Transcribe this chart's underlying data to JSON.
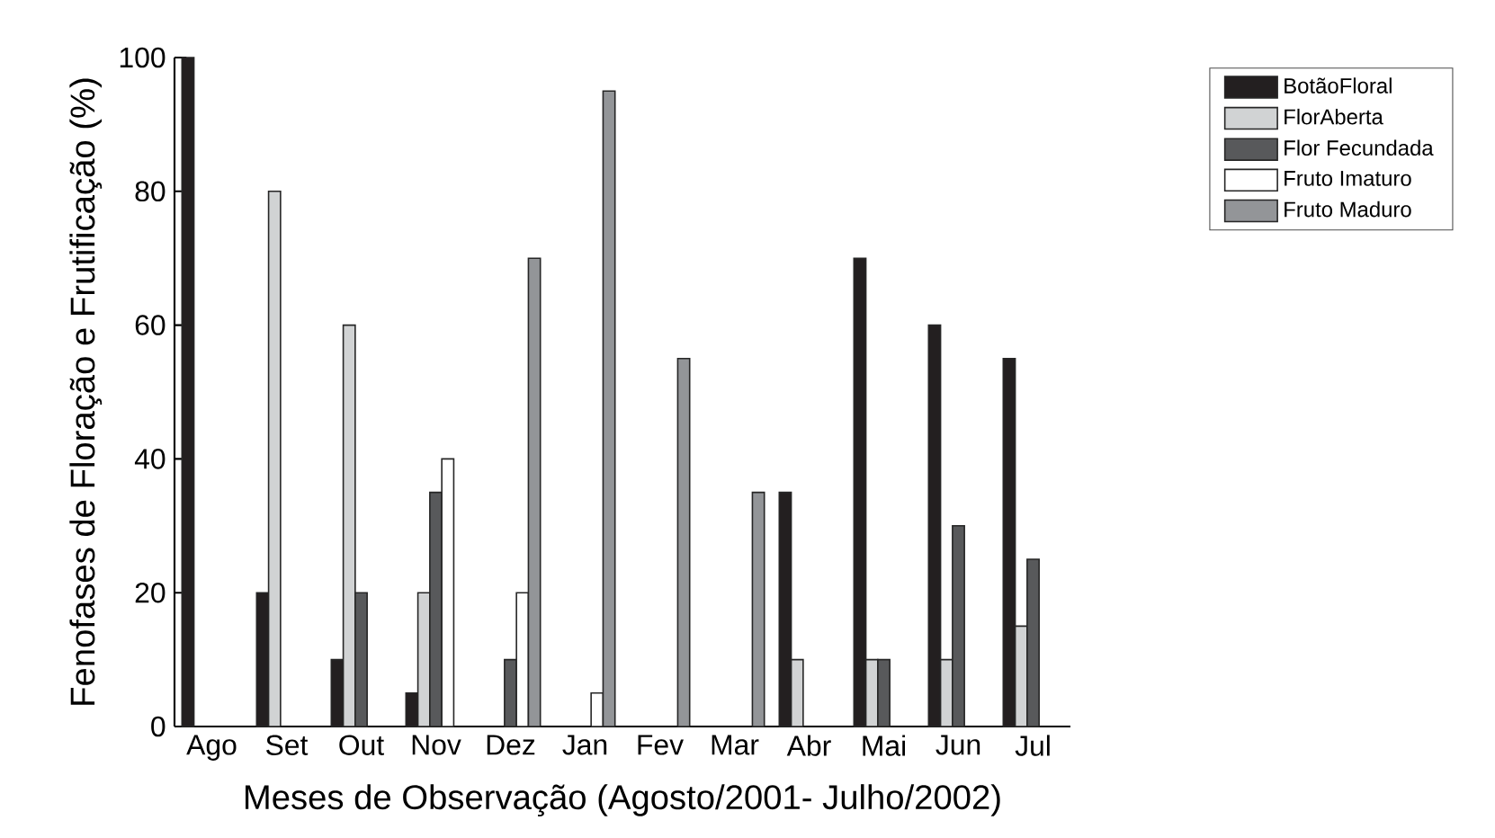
{
  "chart_data": {
    "type": "bar",
    "xlabel": "Meses de Observação (Agosto/2001- Julho/2002)",
    "ylabel": "Fenofases de Floração e Frutificação (%)",
    "categories": [
      "Ago",
      "Set",
      "Out",
      "Nov",
      "Dez",
      "Jan",
      "Fev",
      "Mar",
      "Abr",
      "Mai",
      "Jun",
      "Jul"
    ],
    "series": [
      {
        "name": "BotãoFloral",
        "color": "#231f20",
        "values": [
          100,
          20,
          10,
          5,
          null,
          null,
          null,
          null,
          35,
          70,
          60,
          55
        ]
      },
      {
        "name": "FlorAberta",
        "color": "#d1d3d4",
        "values": [
          null,
          80,
          60,
          20,
          null,
          null,
          null,
          null,
          10,
          10,
          10,
          15
        ]
      },
      {
        "name": "Flor Fecundada",
        "color": "#58595b",
        "values": [
          null,
          null,
          20,
          35,
          10,
          null,
          null,
          null,
          null,
          10,
          30,
          25
        ]
      },
      {
        "name": "Fruto Imaturo",
        "color": "#ffffff",
        "values": [
          null,
          null,
          null,
          40,
          20,
          5,
          null,
          null,
          null,
          null,
          null,
          null
        ]
      },
      {
        "name": "Fruto Maduro",
        "color": "#939598",
        "values": [
          null,
          null,
          null,
          null,
          70,
          95,
          55,
          35,
          null,
          null,
          null,
          null
        ]
      }
    ],
    "ylim": [
      0,
      100
    ],
    "yticks": [
      0,
      20,
      40,
      60,
      80,
      100
    ],
    "legend": "top right"
  }
}
